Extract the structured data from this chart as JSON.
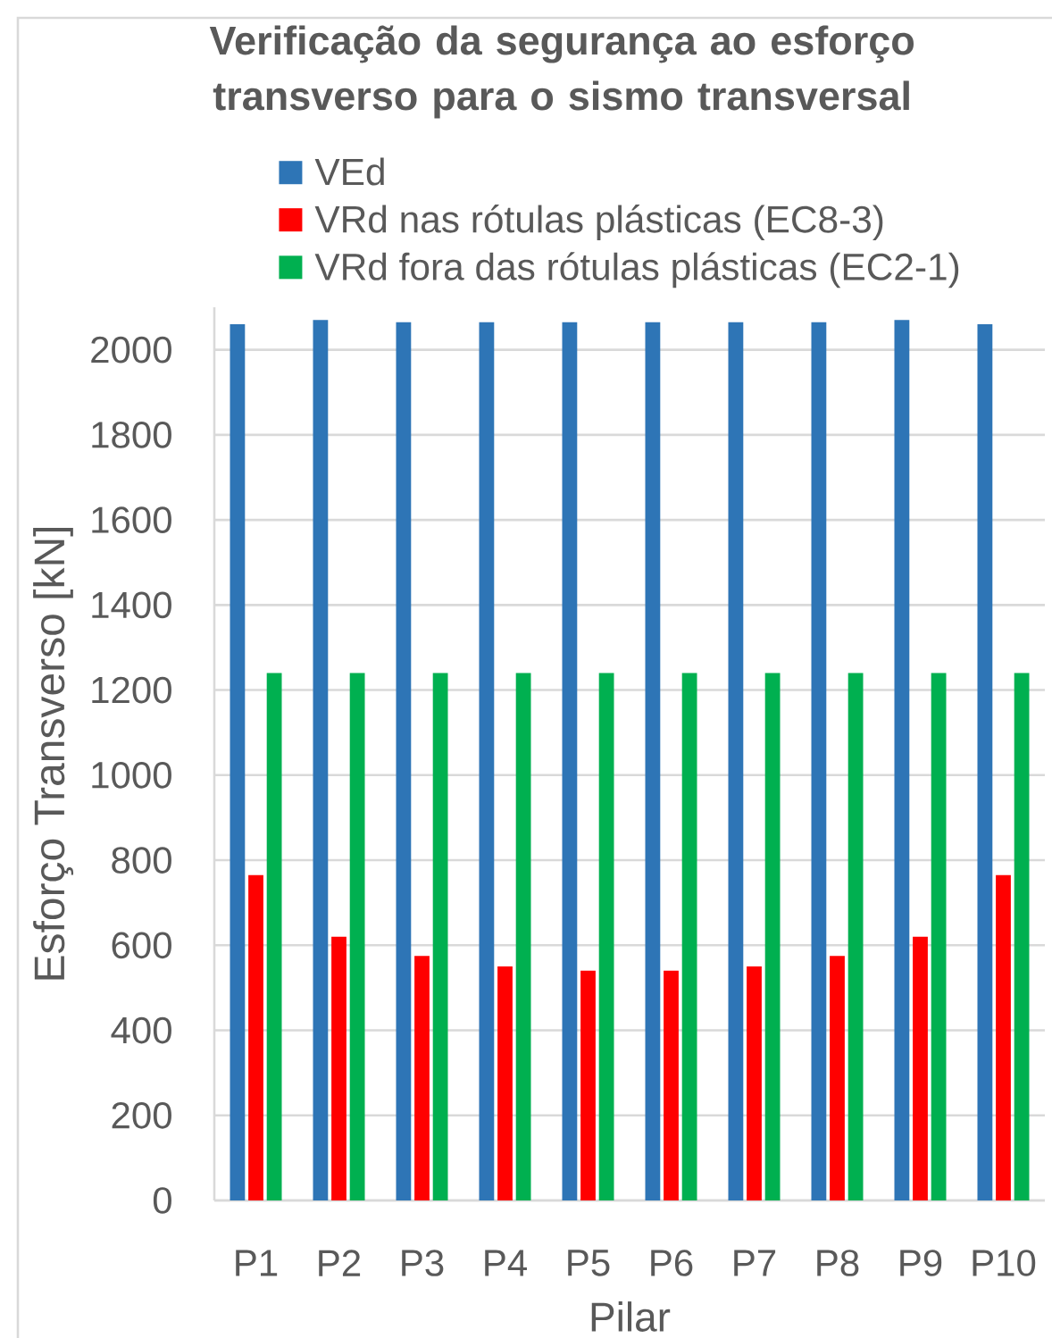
{
  "chart_data": {
    "type": "bar",
    "title": "Verificação da segurança ao esforço transverso para o sismo transversal",
    "xlabel": "Pilar",
    "ylabel": "Esforço Transverso [kN]",
    "categories": [
      "P1",
      "P2",
      "P3",
      "P4",
      "P5",
      "P6",
      "P7",
      "P8",
      "P9",
      "P10"
    ],
    "series": [
      {
        "name": "VEd",
        "color": "#2e75b6",
        "values": [
          2060,
          2070,
          2065,
          2065,
          2065,
          2065,
          2065,
          2065,
          2070,
          2060
        ]
      },
      {
        "name": "VRd nas rótulas plásticas (EC8-3)",
        "color": "#ff0000",
        "values": [
          765,
          620,
          575,
          550,
          540,
          540,
          550,
          575,
          620,
          765
        ]
      },
      {
        "name": "VRd fora das rótulas plásticas (EC2-1)",
        "color": "#00b050",
        "values": [
          1240,
          1240,
          1240,
          1240,
          1240,
          1240,
          1240,
          1240,
          1240,
          1240
        ]
      }
    ],
    "ylim": [
      0,
      2100
    ],
    "yticks": [
      0,
      200,
      400,
      600,
      800,
      1000,
      1200,
      1400,
      1600,
      1800,
      2000
    ],
    "grid": "y",
    "legend": "top"
  }
}
